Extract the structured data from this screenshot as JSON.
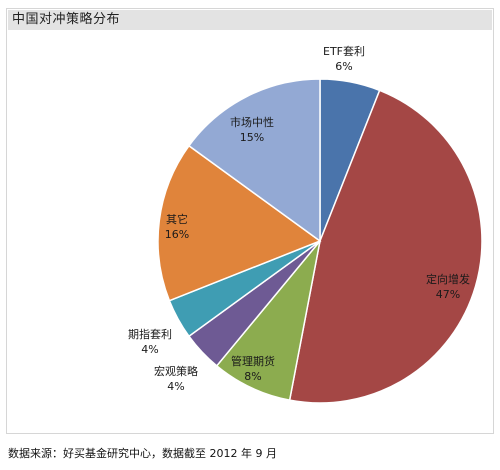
{
  "header": {
    "title": "中国对冲策略分布"
  },
  "footer": {
    "source": "数据来源：好买基金研究中心，数据截至 2012 年 9 月"
  },
  "chart_data": {
    "type": "pie",
    "title": "中国对冲策略分布",
    "slices": [
      {
        "label": "ETF套利",
        "value": 6,
        "display": "6%",
        "color": "#4a74ab"
      },
      {
        "label": "定向增发",
        "value": 47,
        "display": "47%",
        "color": "#a44745"
      },
      {
        "label": "管理期货",
        "value": 8,
        "display": "8%",
        "color": "#8cac4f"
      },
      {
        "label": "宏观策略",
        "value": 4,
        "display": "4%",
        "color": "#6e5a94"
      },
      {
        "label": "期指套利",
        "value": 4,
        "display": "4%",
        "color": "#3f9db3"
      },
      {
        "label": "其它",
        "value": 16,
        "display": "16%",
        "color": "#e0843b"
      },
      {
        "label": "市场中性",
        "value": 15,
        "display": "15%",
        "color": "#93a9d4"
      }
    ]
  }
}
